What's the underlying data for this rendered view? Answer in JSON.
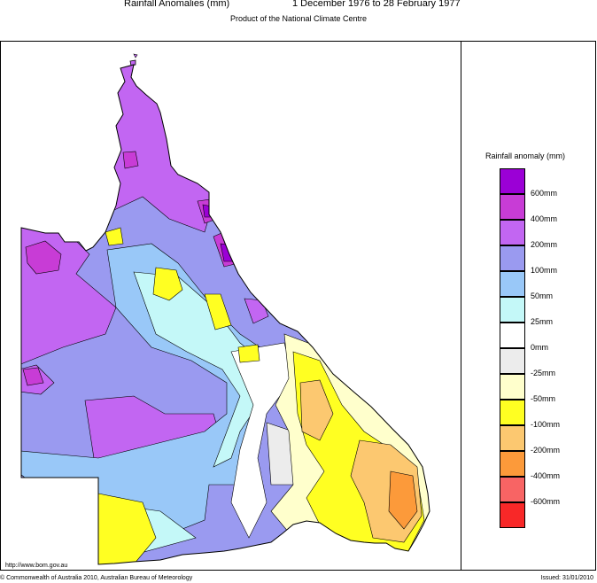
{
  "header": {
    "title": "Rainfall Anomalies (mm)",
    "period": "1 December 1976 to 28 February 1977",
    "subtitle": "Product of the National Climate Centre"
  },
  "legend": {
    "title": "Rainfall anomaly (mm)",
    "items": [
      {
        "label": "600mm",
        "color": "#9b00d6"
      },
      {
        "label": "400mm",
        "color": "#c83cd6"
      },
      {
        "label": "200mm",
        "color": "#c266f2"
      },
      {
        "label": "100mm",
        "color": "#9a9af0"
      },
      {
        "label": "50mm",
        "color": "#99c8f8"
      },
      {
        "label": "25mm",
        "color": "#c4f8f8"
      },
      {
        "label": "0mm",
        "color": "#ffffff"
      },
      {
        "label": "-25mm",
        "color": "#ececec"
      },
      {
        "label": "-50mm",
        "color": "#ffffcc"
      },
      {
        "label": "-100mm",
        "color": "#ffff22"
      },
      {
        "label": "-200mm",
        "color": "#fcc870"
      },
      {
        "label": "-400mm",
        "color": "#fc9a3a"
      },
      {
        "label": "-600mm",
        "color": "#f86464"
      },
      {
        "label": "",
        "color": "#f82828"
      }
    ]
  },
  "footer": {
    "url": "http://www.bom.gov.au",
    "copyright": "© Commonwealth of Australia 2010, Australian Bureau of Meteorology",
    "issued": "Issued: 31/01/2010"
  }
}
